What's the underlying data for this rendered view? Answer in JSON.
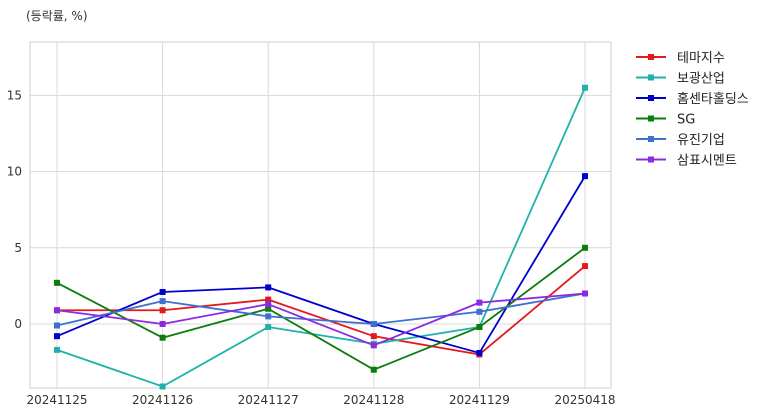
{
  "chart_data": {
    "type": "line",
    "unit_label": "(등락률, %)",
    "x": [
      "20241125",
      "20241126",
      "20241127",
      "20241128",
      "20241129",
      "20250418"
    ],
    "ylim": [
      -4.2,
      18.5
    ],
    "yticks": [
      0,
      5,
      10,
      15
    ],
    "grid": true,
    "legend_position": "right",
    "series": [
      {
        "name": "테마지수",
        "color": "#e31a1c",
        "values": [
          0.9,
          0.9,
          1.6,
          -0.8,
          -2.0,
          3.8
        ]
      },
      {
        "name": "보광산업",
        "color": "#20b2aa",
        "values": [
          -1.7,
          -4.1,
          -0.2,
          -1.3,
          -0.2,
          15.5
        ]
      },
      {
        "name": "홈센타홀딩스",
        "color": "#0000cd",
        "values": [
          -0.8,
          2.1,
          2.4,
          0.0,
          -1.9,
          9.7
        ]
      },
      {
        "name": "SG",
        "color": "#0a7d0a",
        "values": [
          2.7,
          -0.9,
          1.0,
          -3.0,
          -0.2,
          5.0
        ]
      },
      {
        "name": "유진기업",
        "color": "#3f6fd1",
        "values": [
          -0.1,
          1.5,
          0.5,
          0.0,
          0.8,
          2.0
        ]
      },
      {
        "name": "삼표시멘트",
        "color": "#8a2be2",
        "values": [
          0.9,
          0.0,
          1.3,
          -1.4,
          1.4,
          2.0
        ]
      }
    ]
  }
}
